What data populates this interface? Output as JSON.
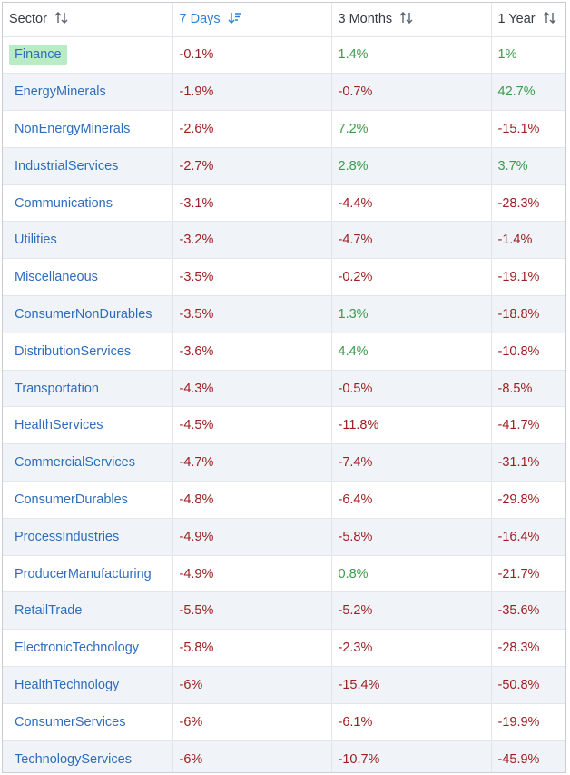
{
  "columns": [
    {
      "label": "Sector",
      "sort_icon": "sort-both-icon",
      "active": false
    },
    {
      "label": "7 Days",
      "sort_icon": "sort-descending-icon",
      "active": true
    },
    {
      "label": "3 Months",
      "sort_icon": "sort-both-icon",
      "active": false
    },
    {
      "label": "1 Year",
      "sort_icon": "sort-both-icon",
      "active": false
    }
  ],
  "colors": {
    "header_text": "#333a40",
    "active_header": "#2f80d9",
    "sector_link": "#2e6dbb",
    "negative": "#9b2020",
    "positive": "#3c9a4c",
    "highlight": "#b9ecc5",
    "alt_row": "#f0f4f8"
  },
  "rows": [
    {
      "sector": "Finance",
      "d7": "-0.1%",
      "m3": "1.4%",
      "y1": "1%",
      "highlight": true
    },
    {
      "sector": "EnergyMinerals",
      "d7": "-1.9%",
      "m3": "-0.7%",
      "y1": "42.7%"
    },
    {
      "sector": "NonEnergyMinerals",
      "d7": "-2.6%",
      "m3": "7.2%",
      "y1": "-15.1%"
    },
    {
      "sector": "IndustrialServices",
      "d7": "-2.7%",
      "m3": "2.8%",
      "y1": "3.7%"
    },
    {
      "sector": "Communications",
      "d7": "-3.1%",
      "m3": "-4.4%",
      "y1": "-28.3%"
    },
    {
      "sector": "Utilities",
      "d7": "-3.2%",
      "m3": "-4.7%",
      "y1": "-1.4%"
    },
    {
      "sector": "Miscellaneous",
      "d7": "-3.5%",
      "m3": "-0.2%",
      "y1": "-19.1%"
    },
    {
      "sector": "ConsumerNonDurables",
      "d7": "-3.5%",
      "m3": "1.3%",
      "y1": "-18.8%"
    },
    {
      "sector": "DistributionServices",
      "d7": "-3.6%",
      "m3": "4.4%",
      "y1": "-10.8%"
    },
    {
      "sector": "Transportation",
      "d7": "-4.3%",
      "m3": "-0.5%",
      "y1": "-8.5%"
    },
    {
      "sector": "HealthServices",
      "d7": "-4.5%",
      "m3": "-11.8%",
      "y1": "-41.7%"
    },
    {
      "sector": "CommercialServices",
      "d7": "-4.7%",
      "m3": "-7.4%",
      "y1": "-31.1%"
    },
    {
      "sector": "ConsumerDurables",
      "d7": "-4.8%",
      "m3": "-6.4%",
      "y1": "-29.8%"
    },
    {
      "sector": "ProcessIndustries",
      "d7": "-4.9%",
      "m3": "-5.8%",
      "y1": "-16.4%"
    },
    {
      "sector": "ProducerManufacturing",
      "d7": "-4.9%",
      "m3": "0.8%",
      "y1": "-21.7%"
    },
    {
      "sector": "RetailTrade",
      "d7": "-5.5%",
      "m3": "-5.2%",
      "y1": "-35.6%"
    },
    {
      "sector": "ElectronicTechnology",
      "d7": "-5.8%",
      "m3": "-2.3%",
      "y1": "-28.3%"
    },
    {
      "sector": "HealthTechnology",
      "d7": "-6%",
      "m3": "-15.4%",
      "y1": "-50.8%"
    },
    {
      "sector": "ConsumerServices",
      "d7": "-6%",
      "m3": "-6.1%",
      "y1": "-19.9%"
    },
    {
      "sector": "TechnologyServices",
      "d7": "-6%",
      "m3": "-10.7%",
      "y1": "-45.9%"
    }
  ]
}
